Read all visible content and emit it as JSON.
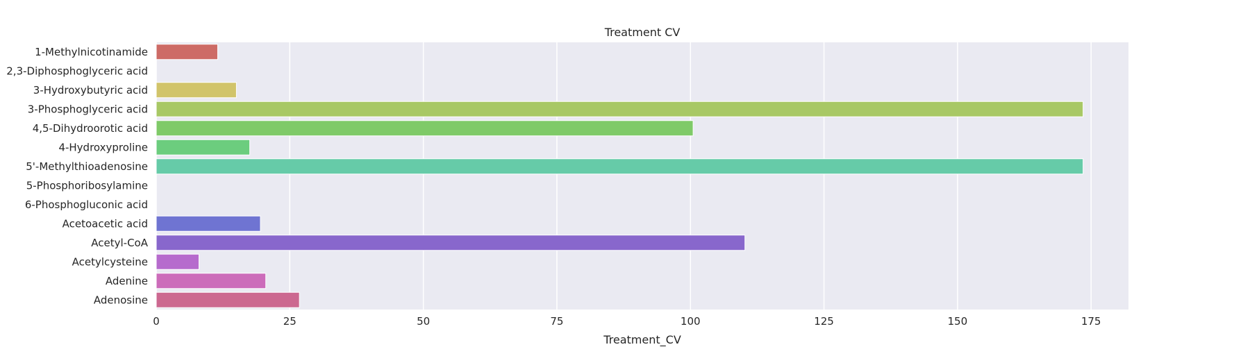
{
  "chart_data": {
    "type": "bar",
    "orientation": "horizontal",
    "title": "Treatment CV",
    "xlabel": "Treatment_CV",
    "ylabel": "",
    "xlim": [
      0,
      182
    ],
    "xticks": [
      0,
      25,
      50,
      75,
      100,
      125,
      150,
      175
    ],
    "grid": true,
    "categories": [
      "1-Methylnicotinamide",
      "2,3-Diphosphoglyceric acid",
      "3-Hydroxybutyric acid",
      "3-Phosphoglyceric acid",
      "4,5-Dihydroorotic acid",
      "4-Hydroxyproline",
      "5'-Methylthioadenosine",
      "5-Phosphoribosylamine",
      "6-Phosphogluconic acid",
      "Acetoacetic acid",
      "Acetyl-CoA",
      "Acetylcysteine",
      "Adenine",
      "Adenosine"
    ],
    "values": [
      11.5,
      0,
      15,
      173.5,
      100.5,
      17.5,
      173.5,
      0,
      0,
      19.5,
      110.2,
      8,
      20.5,
      26.8
    ],
    "colors": [
      "#cd6b66",
      "#d3a35f",
      "#d1c46a",
      "#a8c865",
      "#7fca68",
      "#6ccd7e",
      "#66cba8",
      "#66c3c3",
      "#6aa6cf",
      "#6f74d2",
      "#8867cc",
      "#b66bcd",
      "#cc6cba",
      "#cc6890"
    ],
    "background": "#eaeaf2"
  }
}
